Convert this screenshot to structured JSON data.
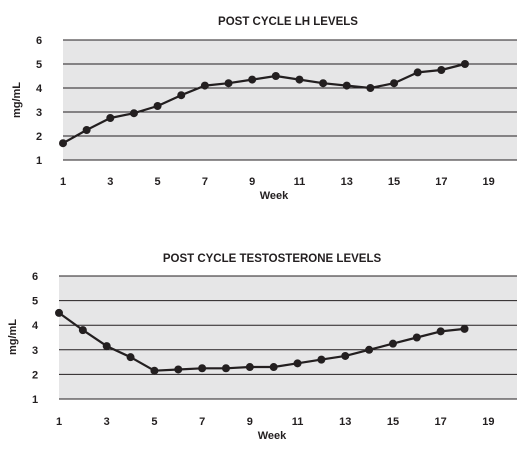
{
  "chart_data": [
    {
      "type": "line",
      "title": "POST CYCLE LH LEVELS",
      "xlabel": "Week",
      "ylabel": "mg/mL",
      "xlim": [
        1,
        20.2
      ],
      "ylim": [
        1,
        6
      ],
      "xticks": [
        1,
        3,
        5,
        7,
        9,
        11,
        13,
        15,
        17,
        19
      ],
      "yticks": [
        1,
        2,
        3,
        4,
        5,
        6
      ],
      "grid": "horizontal",
      "legend": "none",
      "plot_bg": "#e6e6e7",
      "line_color": "#231f20",
      "series": [
        {
          "x": [
            1,
            2,
            3,
            4,
            5,
            6,
            7,
            8,
            9,
            10,
            11,
            12,
            13,
            14,
            15,
            16,
            17,
            18
          ],
          "y": [
            1.7,
            2.25,
            2.75,
            2.95,
            3.25,
            3.7,
            4.1,
            4.2,
            4.35,
            4.5,
            4.35,
            4.2,
            4.1,
            4.0,
            4.2,
            4.65,
            4.75,
            5.0
          ]
        }
      ]
    },
    {
      "type": "line",
      "title": "POST CYCLE TESTOSTERONE LEVELS",
      "xlabel": "Week",
      "ylabel": "mg/mL",
      "xlim": [
        1,
        20.2
      ],
      "ylim": [
        1,
        6
      ],
      "xticks": [
        1,
        3,
        5,
        7,
        9,
        11,
        13,
        15,
        17,
        19
      ],
      "yticks": [
        1,
        2,
        3,
        4,
        5,
        6
      ],
      "grid": "horizontal",
      "legend": "none",
      "plot_bg": "#e6e6e7",
      "line_color": "#231f20",
      "series": [
        {
          "x": [
            1,
            2,
            3,
            4,
            5,
            6,
            7,
            8,
            9,
            10,
            11,
            12,
            13,
            14,
            15,
            16,
            17,
            18
          ],
          "y": [
            4.5,
            3.8,
            3.15,
            2.7,
            2.15,
            2.2,
            2.25,
            2.25,
            2.3,
            2.3,
            2.45,
            2.6,
            2.75,
            3.0,
            3.25,
            3.5,
            3.75,
            3.85
          ]
        }
      ]
    }
  ]
}
